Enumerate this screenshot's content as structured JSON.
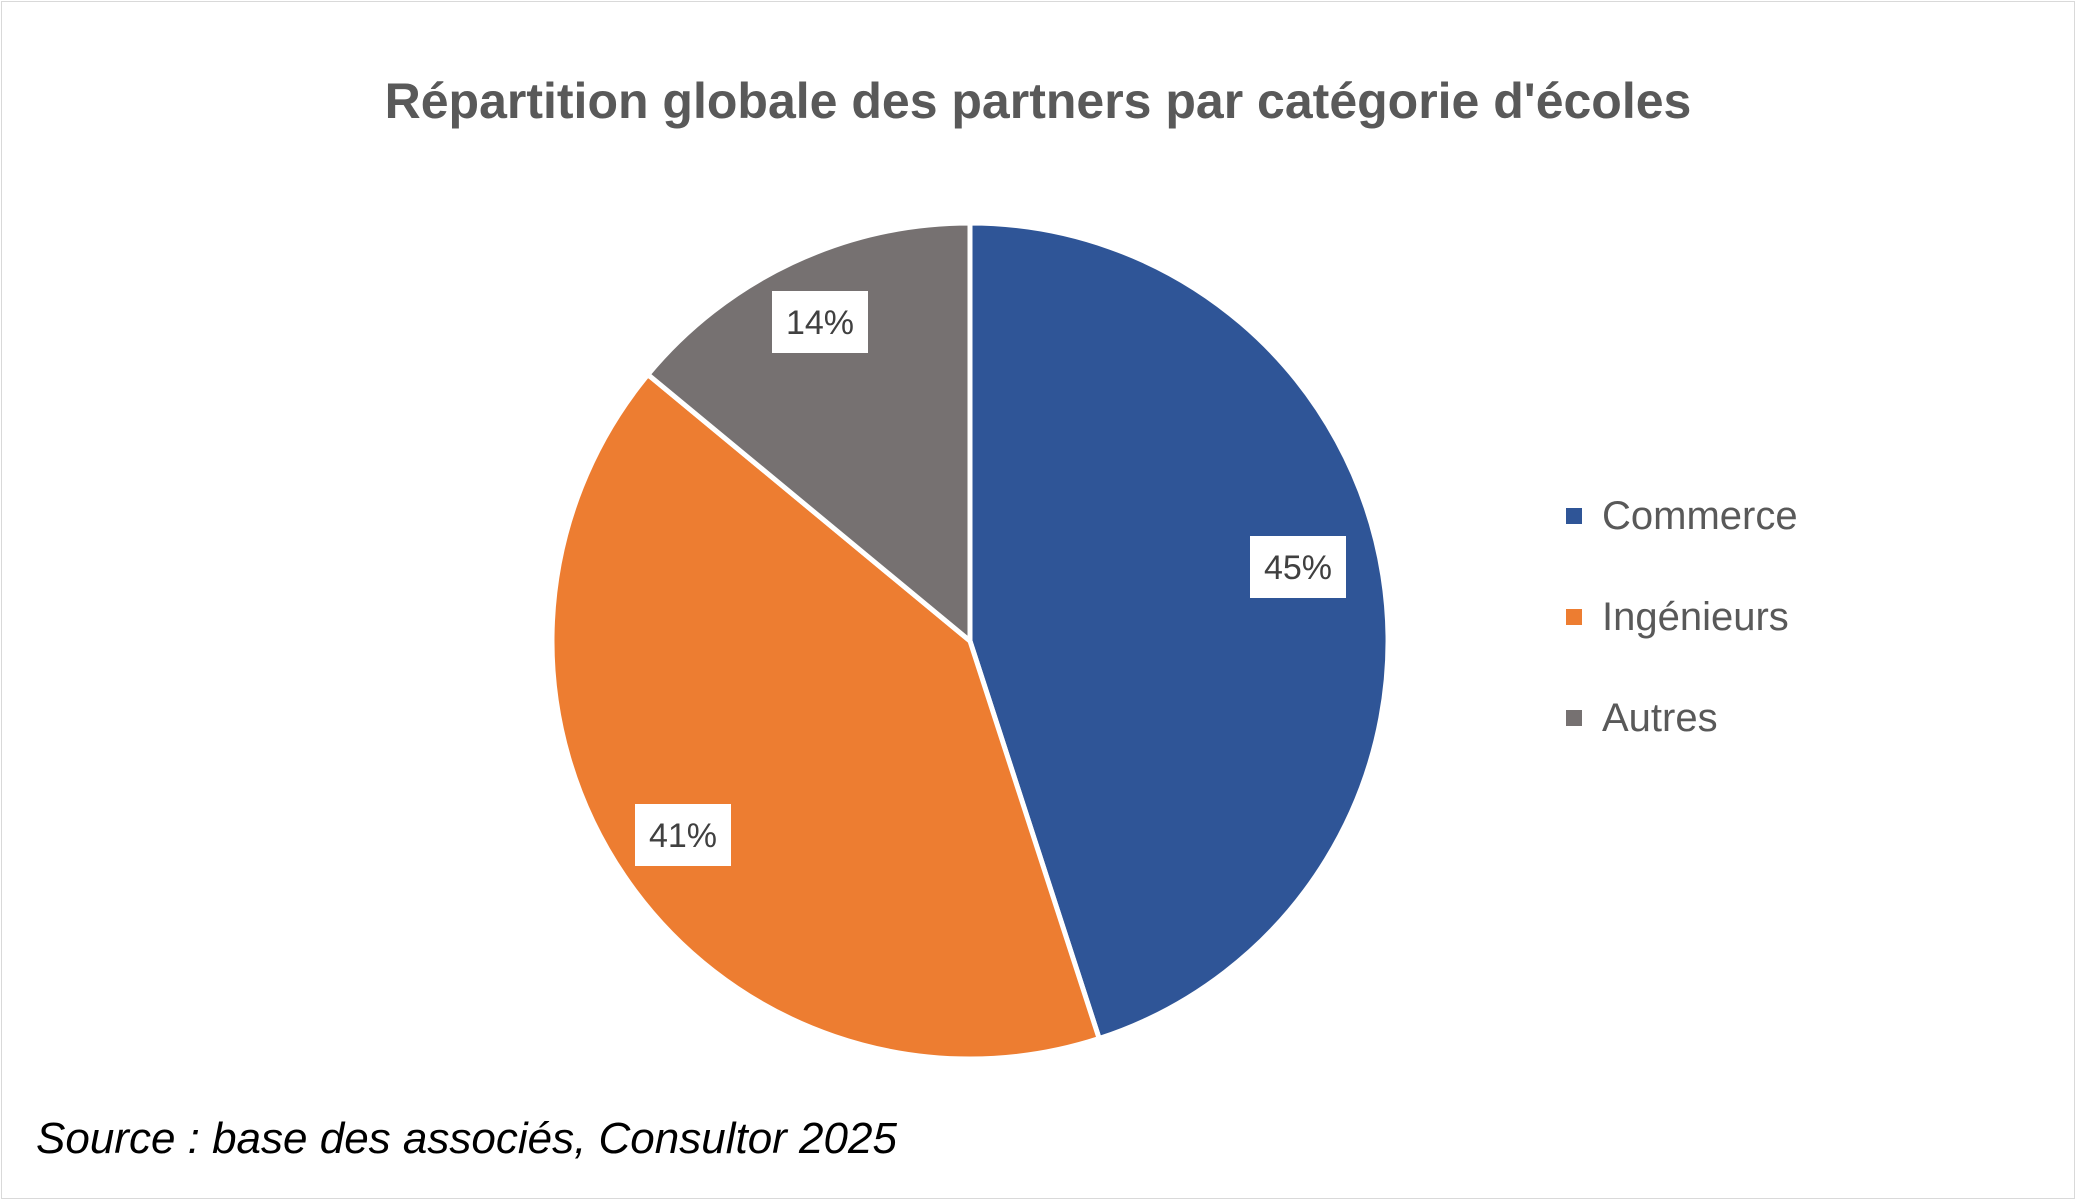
{
  "chart_data": {
    "type": "pie",
    "title": "Répartition globale des partners par catégorie d'écoles",
    "categories": [
      "Commerce",
      "Ingénieurs",
      "Autres"
    ],
    "values": [
      45,
      41,
      14
    ],
    "labels": [
      "45%",
      "41%",
      "14%"
    ],
    "unit": "%",
    "colors": [
      "#2f5597",
      "#ed7d31",
      "#767171"
    ],
    "legend_position": "right"
  },
  "legend": {
    "items": [
      {
        "label": "Commerce",
        "color": "#2f5597"
      },
      {
        "label": "Ingénieurs",
        "color": "#ed7d31"
      },
      {
        "label": "Autres",
        "color": "#767171"
      }
    ]
  },
  "source": "Source : base des associés, Consultor 2025"
}
